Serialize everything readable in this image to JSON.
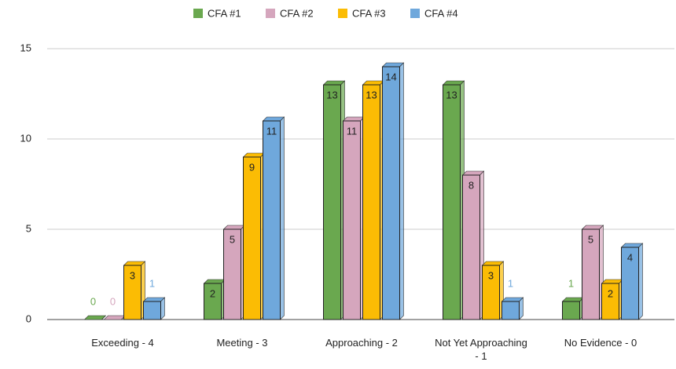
{
  "chart_data": {
    "type": "bar",
    "categories": [
      "Exceeding - 4",
      "Meeting - 3",
      "Approaching - 2",
      "Not Yet Approaching - 1",
      "No Evidence - 0"
    ],
    "series": [
      {
        "name": "CFA #1",
        "color": "#6aa84f",
        "values": [
          0,
          2,
          13,
          13,
          1
        ]
      },
      {
        "name": "CFA #2",
        "color": "#d5a6bd",
        "values": [
          0,
          5,
          11,
          8,
          5
        ]
      },
      {
        "name": "CFA #3",
        "color": "#fbbc04",
        "values": [
          3,
          9,
          13,
          3,
          2
        ]
      },
      {
        "name": "CFA #4",
        "color": "#6fa8dc",
        "values": [
          1,
          11,
          14,
          1,
          4
        ]
      }
    ],
    "ylim": [
      0,
      15
    ],
    "yticks": [
      0,
      5,
      10,
      15
    ],
    "grid": true,
    "legend": "top"
  }
}
